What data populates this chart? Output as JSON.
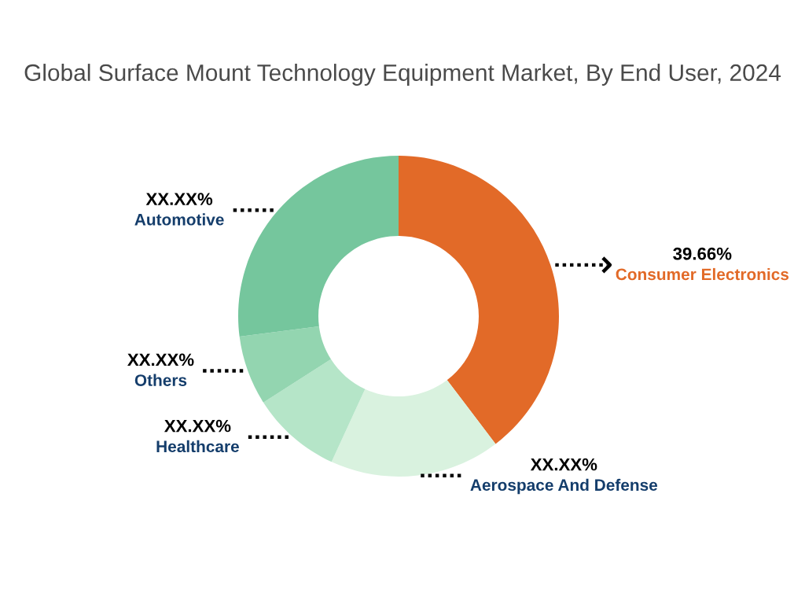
{
  "chart_data": {
    "type": "donut",
    "title": "Global Surface Mount Technology Equipment Market, By End User, 2024",
    "categories": [
      "Consumer Electronics",
      "Aerospace And Defense",
      "Healthcare",
      "Others",
      "Automotive"
    ],
    "values": [
      39.66,
      17.2,
      9.1,
      7.0,
      27.04
    ],
    "colors": [
      "#e26a28",
      "#d9f2df",
      "#b5e5c8",
      "#93d5b0",
      "#75c69d"
    ],
    "value_labels": [
      "39.66%",
      "XX.XX%",
      "XX.XX%",
      "XX.XX%",
      "XX.XX%"
    ]
  }
}
